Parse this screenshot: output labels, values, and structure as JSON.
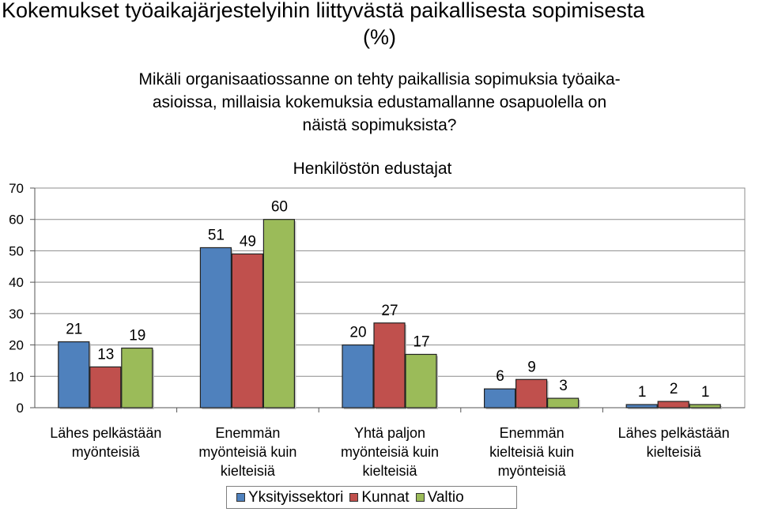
{
  "header": {
    "title_line1": "Kokemukset työaikajärjestelyihin liittyvästä paikallisesta sopimisesta",
    "title_line2": "(%)",
    "question_line1": "Mikäli organisaatiossanne on tehty paikallisia sopimuksia työaika-",
    "question_line2": "asioissa, millaisia kokemuksia edustamallanne osapuolella on",
    "question_line3": "näistä sopimuksista?"
  },
  "chart_data": {
    "type": "bar",
    "title": "Henkilöstön edustajat",
    "categories": [
      [
        "Lähes pelkästään",
        "myönteisiä"
      ],
      [
        "Enemmän",
        "myönteisiä kuin",
        "kielteisiä"
      ],
      [
        "Yhtä paljon",
        "myönteisiä kuin",
        "kielteisiä"
      ],
      [
        "Enemmän",
        "kielteisiä kuin",
        "myönteisiä"
      ],
      [
        "Lähes pelkästään",
        "kielteisiä"
      ]
    ],
    "series": [
      {
        "name": "Yksityissektori",
        "color": "#4f81bd",
        "values": [
          21,
          51,
          20,
          6,
          1
        ]
      },
      {
        "name": "Kunnat",
        "color": "#c0504d",
        "values": [
          13,
          49,
          27,
          9,
          2
        ]
      },
      {
        "name": "Valtio",
        "color": "#9bbb59",
        "values": [
          19,
          60,
          17,
          3,
          1
        ]
      }
    ],
    "ylim": [
      0,
      70
    ],
    "yticks": [
      0,
      10,
      20,
      30,
      40,
      50,
      60,
      70
    ],
    "grid": true,
    "legend": "bottom"
  }
}
